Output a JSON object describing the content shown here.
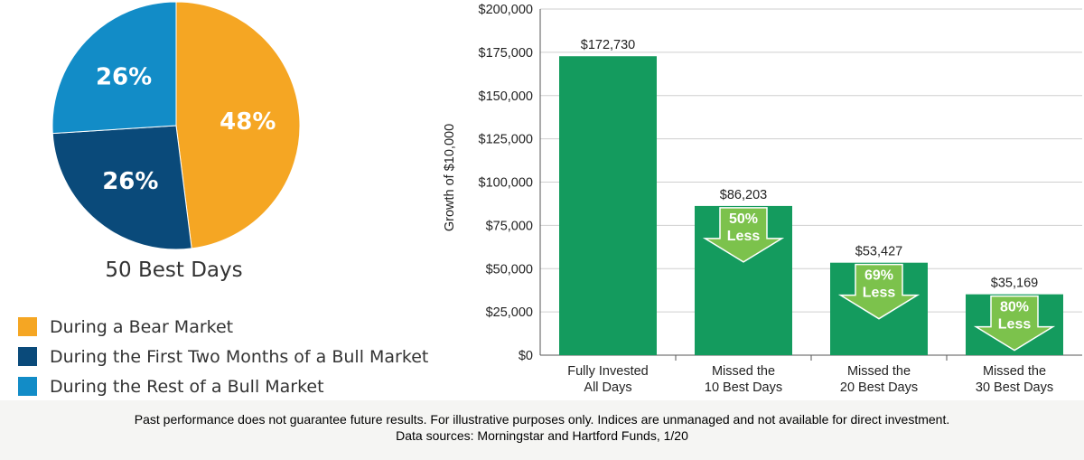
{
  "pie": {
    "title": "50 Best Days",
    "slices": [
      {
        "name": "During a Bear Market",
        "value": 48,
        "label": "48%",
        "color": "#f5a623"
      },
      {
        "name": "During the First Two Months of a Bull Market",
        "value": 26,
        "label": "26%",
        "color": "#0a4a7a"
      },
      {
        "name": "During the Rest of a Bull Market",
        "value": 26,
        "label": "26%",
        "color": "#128cc7"
      }
    ]
  },
  "chart_data": {
    "type": "bar",
    "title": "",
    "xlabel": "",
    "ylabel": "Growth of $10,000",
    "ylim": [
      0,
      200000
    ],
    "yticks": [
      0,
      25000,
      50000,
      75000,
      100000,
      125000,
      150000,
      175000,
      200000
    ],
    "ytick_labels": [
      "$0",
      "$25,000",
      "$50,000",
      "$75,000",
      "$100,000",
      "$125,000",
      "$150,000",
      "$175,000",
      "$200,000"
    ],
    "categories": [
      [
        "Fully Invested",
        "All Days"
      ],
      [
        "Missed the",
        "10 Best Days"
      ],
      [
        "Missed the",
        "20 Best Days"
      ],
      [
        "Missed the",
        "30 Best Days"
      ]
    ],
    "values": [
      172730,
      86203,
      53427,
      35169
    ],
    "value_labels": [
      "$172,730",
      "$86,203",
      "$53,427",
      "$35,169"
    ],
    "annotations": [
      null,
      [
        "50%",
        "Less"
      ],
      [
        "69%",
        "Less"
      ],
      [
        "80%",
        "Less"
      ]
    ],
    "bar_color": "#149b5e",
    "arrow_color": "#7cc24c",
    "grid": true
  },
  "footer": {
    "line1": "Past performance does not guarantee future results. For illustrative purposes only. Indices are unmanaged and not available for direct investment.",
    "line2": "Data sources: Morningstar and Hartford Funds, 1/20"
  }
}
